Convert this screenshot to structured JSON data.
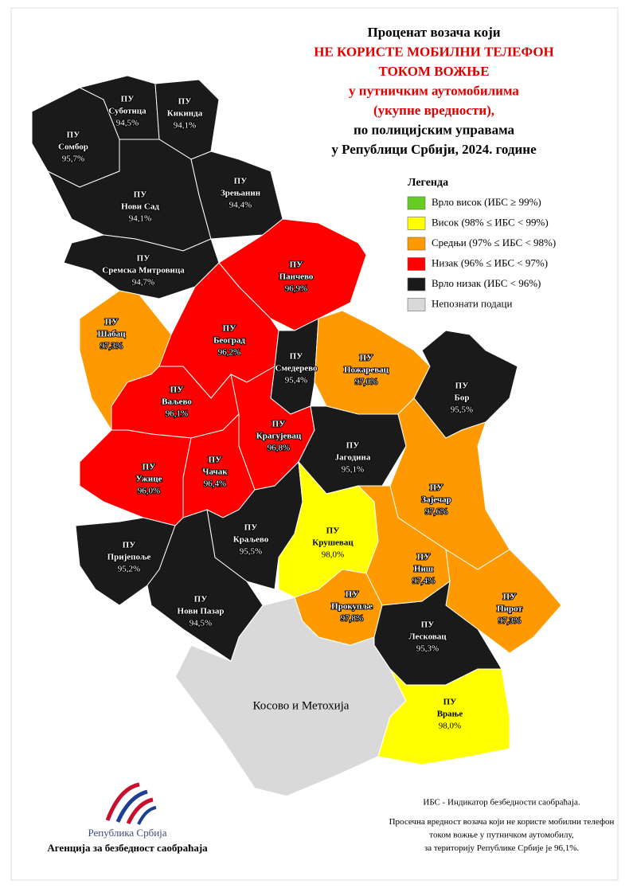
{
  "title_lines": [
    {
      "text": "Проценат возача који",
      "color": "#000000"
    },
    {
      "text": "НЕ КОРИСТЕ МОБИЛНИ ТЕЛЕФОН",
      "color": "#e00000"
    },
    {
      "text": "ТОКОМ ВОЖЊЕ",
      "color": "#e00000"
    },
    {
      "text": "у путничким аутомобилима",
      "color": "#e00000"
    },
    {
      "text": "(укупне вредности),",
      "color": "#e00000"
    },
    {
      "text": "по полицијским управама",
      "color": "#000000"
    },
    {
      "text": "у Републици Србији, 2024. године",
      "color": "#000000"
    }
  ],
  "legend": {
    "title": "Легенда",
    "items": [
      {
        "label": "Врло висок (ИБС ≥ 99%)",
        "color": "#66cc22",
        "min": 99
      },
      {
        "label": "Висок (98% ≤ ИБС < 99%)",
        "color": "#ffff00",
        "min": 98
      },
      {
        "label": "Средњи (97% ≤ ИБС < 98%)",
        "color": "#ff9900",
        "min": 97
      },
      {
        "label": "Низак (96% ≤ ИБС < 97%)",
        "color": "#ff0000",
        "min": 96
      },
      {
        "label": "Врло низак (ИБС < 96%)",
        "color": "#1a1a1a",
        "max": 96
      },
      {
        "label": "Непознати подаци",
        "color": "#d9d9d9"
      }
    ]
  },
  "region_prefix": "ПУ",
  "regions": [
    {
      "name": "Сомбор",
      "value": 95.7,
      "value_label": "95,7%"
    },
    {
      "name": "Суботица",
      "value": 94.5,
      "value_label": "94,5%"
    },
    {
      "name": "Кикинда",
      "value": 94.1,
      "value_label": "94,1%"
    },
    {
      "name": "Нови Сад",
      "value": 94.1,
      "value_label": "94,1%"
    },
    {
      "name": "Зрењанин",
      "value": 94.4,
      "value_label": "94,4%"
    },
    {
      "name": "Сремска Митровица",
      "value": 94.7,
      "value_label": "94,7%"
    },
    {
      "name": "Панчево",
      "value": 96.9,
      "value_label": "96,9%"
    },
    {
      "name": "Шабац",
      "value": 97.3,
      "value_label": "97,3%"
    },
    {
      "name": "Београд",
      "value": 96.2,
      "value_label": "96,2%"
    },
    {
      "name": "Смедерево",
      "value": 95.4,
      "value_label": "95,4%"
    },
    {
      "name": "Пожаревац",
      "value": 97.0,
      "value_label": "97,0%"
    },
    {
      "name": "Бор",
      "value": 95.5,
      "value_label": "95,5%"
    },
    {
      "name": "Ваљево",
      "value": 96.1,
      "value_label": "96,1%"
    },
    {
      "name": "Крагујевац",
      "value": 96.8,
      "value_label": "96,8%"
    },
    {
      "name": "Јагодина",
      "value": 95.1,
      "value_label": "95,1%"
    },
    {
      "name": "Зајечар",
      "value": 97.6,
      "value_label": "97,6%"
    },
    {
      "name": "Ужице",
      "value": 96.0,
      "value_label": "96,0%"
    },
    {
      "name": "Чачак",
      "value": 96.4,
      "value_label": "96,4%"
    },
    {
      "name": "Краљево",
      "value": 95.5,
      "value_label": "95,5%"
    },
    {
      "name": "Крушевац",
      "value": 98.0,
      "value_label": "98,0%"
    },
    {
      "name": "Пријепоље",
      "value": 95.2,
      "value_label": "95,2%"
    },
    {
      "name": "Нови Пазар",
      "value": 94.5,
      "value_label": "94,5%"
    },
    {
      "name": "Ниш",
      "value": 97.4,
      "value_label": "97,4%"
    },
    {
      "name": "Прокупље",
      "value": 97.8,
      "value_label": "97,8%"
    },
    {
      "name": "Пирот",
      "value": 97.3,
      "value_label": "97,3%"
    },
    {
      "name": "Лесковац",
      "value": 95.3,
      "value_label": "95,3%"
    },
    {
      "name": "Врање",
      "value": 98.0,
      "value_label": "98,0%"
    }
  ],
  "unknown_region": {
    "name": "Косово и Метохија"
  },
  "footnotes": [
    "ИБС - Индикатор безбедности саобраћаја.",
    "Просечна вредност возача који не користе мобилни телефон",
    "током вожње у путничком аутомобилу,",
    "за територију Републике Србије је 96,1%."
  ],
  "logo": {
    "country": "Република Србија",
    "agency": "Агенција за безбедност саобраћаја"
  }
}
